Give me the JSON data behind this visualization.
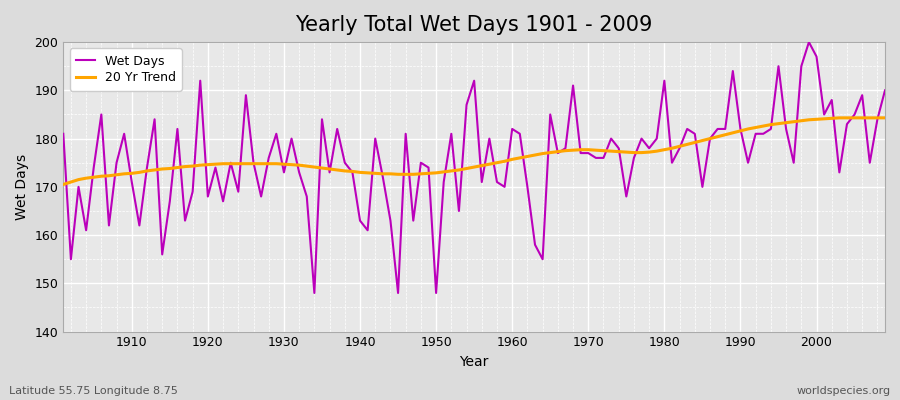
{
  "title": "Yearly Total Wet Days 1901 - 2009",
  "xlabel": "Year",
  "ylabel": "Wet Days",
  "subtitle": "Latitude 55.75 Longitude 8.75",
  "watermark": "worldspecies.org",
  "ylim": [
    140,
    200
  ],
  "xlim": [
    1901,
    2009
  ],
  "line_color": "#BB00BB",
  "trend_color": "#FFA500",
  "bg_color": "#DCDCDC",
  "plot_bg_color": "#E8E8E8",
  "years": [
    1901,
    1902,
    1903,
    1904,
    1905,
    1906,
    1907,
    1908,
    1909,
    1910,
    1911,
    1912,
    1913,
    1914,
    1915,
    1916,
    1917,
    1918,
    1919,
    1920,
    1921,
    1922,
    1923,
    1924,
    1925,
    1926,
    1927,
    1928,
    1929,
    1930,
    1931,
    1932,
    1933,
    1934,
    1935,
    1936,
    1937,
    1938,
    1939,
    1940,
    1941,
    1942,
    1943,
    1944,
    1945,
    1946,
    1947,
    1948,
    1949,
    1950,
    1951,
    1952,
    1953,
    1954,
    1955,
    1956,
    1957,
    1958,
    1959,
    1960,
    1961,
    1962,
    1963,
    1964,
    1965,
    1966,
    1967,
    1968,
    1969,
    1970,
    1971,
    1972,
    1973,
    1974,
    1975,
    1976,
    1977,
    1978,
    1979,
    1980,
    1981,
    1982,
    1983,
    1984,
    1985,
    1986,
    1987,
    1988,
    1989,
    1990,
    1991,
    1992,
    1993,
    1994,
    1995,
    1996,
    1997,
    1998,
    1999,
    2000,
    2001,
    2002,
    2003,
    2004,
    2005,
    2006,
    2007,
    2008,
    2009
  ],
  "wet_days": [
    181,
    155,
    170,
    161,
    174,
    185,
    162,
    175,
    181,
    171,
    162,
    174,
    184,
    156,
    167,
    182,
    163,
    169,
    192,
    168,
    174,
    167,
    175,
    169,
    189,
    175,
    168,
    176,
    181,
    173,
    180,
    173,
    168,
    148,
    184,
    173,
    182,
    175,
    173,
    163,
    161,
    180,
    172,
    163,
    148,
    181,
    163,
    175,
    174,
    148,
    171,
    181,
    165,
    187,
    192,
    171,
    180,
    171,
    170,
    182,
    181,
    170,
    158,
    155,
    185,
    177,
    178,
    191,
    177,
    177,
    176,
    176,
    180,
    178,
    168,
    176,
    180,
    178,
    180,
    192,
    175,
    178,
    182,
    181,
    170,
    180,
    182,
    182,
    194,
    182,
    175,
    181,
    181,
    182,
    195,
    182,
    175,
    195,
    200,
    197,
    185,
    188,
    173,
    183,
    185,
    189,
    175,
    184,
    190
  ],
  "trend": [
    170.5,
    171.0,
    171.5,
    171.8,
    172.0,
    172.2,
    172.3,
    172.5,
    172.7,
    172.8,
    173.0,
    173.3,
    173.5,
    173.7,
    173.8,
    174.0,
    174.2,
    174.3,
    174.5,
    174.6,
    174.7,
    174.8,
    174.8,
    174.8,
    174.8,
    174.8,
    174.8,
    174.8,
    174.8,
    174.7,
    174.6,
    174.5,
    174.3,
    174.1,
    173.9,
    173.7,
    173.5,
    173.3,
    173.2,
    173.0,
    172.9,
    172.8,
    172.7,
    172.7,
    172.6,
    172.6,
    172.6,
    172.7,
    172.8,
    172.9,
    173.1,
    173.3,
    173.5,
    173.8,
    174.1,
    174.4,
    174.7,
    175.0,
    175.3,
    175.7,
    176.0,
    176.3,
    176.6,
    176.9,
    177.1,
    177.3,
    177.5,
    177.6,
    177.7,
    177.7,
    177.6,
    177.5,
    177.4,
    177.3,
    177.2,
    177.1,
    177.1,
    177.2,
    177.4,
    177.7,
    178.0,
    178.4,
    178.8,
    179.2,
    179.6,
    180.0,
    180.4,
    180.8,
    181.2,
    181.6,
    182.0,
    182.3,
    182.6,
    182.9,
    183.1,
    183.3,
    183.5,
    183.7,
    183.9,
    184.0,
    184.1,
    184.2,
    184.3,
    184.3,
    184.3,
    184.3,
    184.3,
    184.3,
    184.3
  ]
}
